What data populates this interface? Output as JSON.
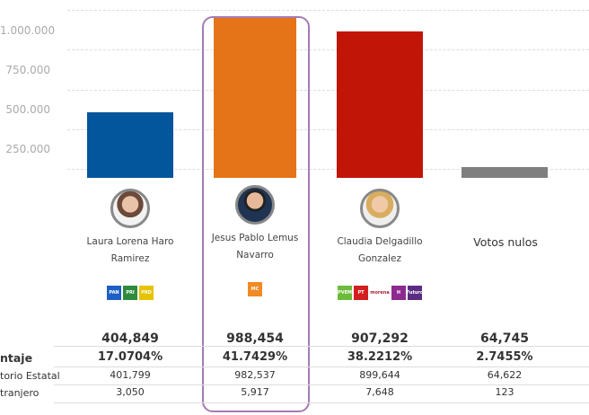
{
  "chart_data": {
    "type": "bar",
    "categories": [
      "Laura Lorena Haro Ramirez",
      "Jesus Pablo Lemus Navarro",
      "Claudia Delgadillo Gonzalez",
      "Votos nulos"
    ],
    "values": [
      404849,
      988454,
      907292,
      64745
    ],
    "colors": [
      "#03559c",
      "#e57318",
      "#c11508",
      "#7f7f7f"
    ],
    "yticks": [
      "250.000",
      "500.000",
      "750.000",
      "1.000.000"
    ],
    "ylim": [
      0,
      1000000
    ],
    "grid": true,
    "highlighted": "Jesus Pablo Lemus Navarro"
  },
  "candidates": [
    {
      "name": "Laura Lorena Haro Ramirez",
      "parties": [
        {
          "name": "PAN",
          "color": "#1d5fc2"
        },
        {
          "name": "PRI",
          "color": "#2e8b3d"
        },
        {
          "name": "PRD",
          "color": "#e6c300"
        }
      ]
    },
    {
      "name": "Jesus Pablo Lemus Navarro",
      "parties": [
        {
          "name": "MC",
          "color": "#f08a24"
        }
      ]
    },
    {
      "name": "Claudia Delgadillo Gonzalez",
      "parties": [
        {
          "name": "PVEM",
          "color": "#6dbb3a"
        },
        {
          "name": "PT",
          "color": "#d21f1f"
        },
        {
          "name": "morena",
          "color": "#a8233a"
        },
        {
          "name": "H",
          "color": "#8c2a8f"
        },
        {
          "name": "Futuro",
          "color": "#5b2c83"
        }
      ]
    },
    {
      "name": "Votos nulos",
      "parties": []
    }
  ],
  "table": {
    "row_labels": [
      "ntaje",
      "torio Estatal",
      "tranjero"
    ],
    "totals": [
      "404,849",
      "988,454",
      "907,292",
      "64,745"
    ],
    "percent": [
      "17.0704%",
      "41.7429%",
      "38.2212%",
      "2.7455%"
    ],
    "estatal": [
      "401,799",
      "982,537",
      "899,644",
      "64,622"
    ],
    "extranjero": [
      "3,050",
      "5,917",
      "7,648",
      "123"
    ]
  }
}
